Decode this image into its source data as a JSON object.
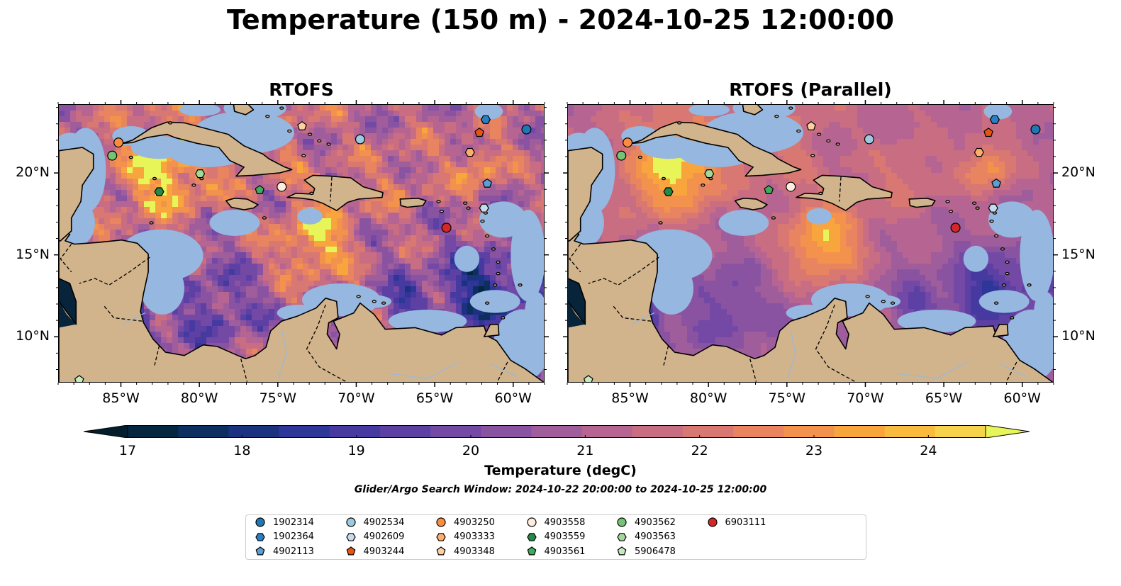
{
  "title": "Temperature (150 m) - 2024-10-25 12:00:00",
  "panels": [
    {
      "title": "RTOFS",
      "mode": "sharp"
    },
    {
      "title": "RTOFS (Parallel)",
      "mode": "smooth"
    }
  ],
  "axes": {
    "xlim_deg": [
      -89.0,
      -58.0
    ],
    "ylim_deg": [
      7.2,
      24.2
    ],
    "xticks": [
      {
        "value": -85,
        "label": "85°W"
      },
      {
        "value": -80,
        "label": "80°W"
      },
      {
        "value": -75,
        "label": "75°W"
      },
      {
        "value": -70,
        "label": "70°W"
      },
      {
        "value": -65,
        "label": "65°W"
      },
      {
        "value": -60,
        "label": "60°W"
      }
    ],
    "yticks": [
      {
        "value": 20,
        "label": "20°N"
      },
      {
        "value": 15,
        "label": "15°N"
      },
      {
        "value": 10,
        "label": "10°N"
      }
    ]
  },
  "colorbar": {
    "label": "Temperature (degC)",
    "ticks": [
      "17",
      "18",
      "19",
      "20",
      "21",
      "22",
      "23",
      "24"
    ],
    "min": 17,
    "max": 24.5,
    "step": 0.5,
    "colors": [
      "#05263f",
      "#0d2e60",
      "#1b3281",
      "#2e3697",
      "#463aa1",
      "#5d40a4",
      "#7448a5",
      "#8a53a2",
      "#a05d9c",
      "#b66592",
      "#c96d83",
      "#d97872",
      "#e8845f",
      "#f3924c",
      "#f9a53e",
      "#f9bb3e",
      "#f5d44b"
    ],
    "under_color": "#041d2e",
    "over_color": "#e8f558"
  },
  "colors": {
    "land": "#d2b48c",
    "shelf": "#95b7e0",
    "deep": "#07243a"
  },
  "search_window": "Glider/Argo Search Window: 2024-10-22 20:00:00 to 2024-10-25 12:00:00",
  "floats": [
    {
      "id": "1902314",
      "marker": "circle",
      "color": "#1f77b4",
      "lon": -59.2,
      "lat": 22.7
    },
    {
      "id": "1902364",
      "marker": "hexagon",
      "color": "#2a7fc4",
      "lon": -61.8,
      "lat": 23.3
    },
    {
      "id": "4902113",
      "marker": "pentagon",
      "color": "#5a9fd6",
      "lon": -61.7,
      "lat": 19.4
    },
    {
      "id": "4902534",
      "marker": "circle",
      "color": "#9ecae1",
      "lon": -69.8,
      "lat": 22.1
    },
    {
      "id": "4902609",
      "marker": "hexagon",
      "color": "#c6dbef",
      "lon": -61.9,
      "lat": 17.9
    },
    {
      "id": "4903244",
      "marker": "pentagon",
      "color": "#e6550d",
      "lon": -62.2,
      "lat": 22.5
    },
    {
      "id": "4903250",
      "marker": "circle",
      "color": "#fd8d3c",
      "lon": -85.2,
      "lat": 21.9
    },
    {
      "id": "4903333",
      "marker": "hexagon",
      "color": "#fdae6b",
      "lon": -62.8,
      "lat": 21.3
    },
    {
      "id": "4903348",
      "marker": "pentagon",
      "color": "#fdd0a2",
      "lon": -73.5,
      "lat": 22.9
    },
    {
      "id": "4903558",
      "marker": "circle",
      "color": "#feedde",
      "lon": -74.8,
      "lat": 19.2
    },
    {
      "id": "4903559",
      "marker": "hexagon",
      "color": "#238b45",
      "lon": -82.6,
      "lat": 18.9
    },
    {
      "id": "4903561",
      "marker": "pentagon",
      "color": "#41ab5d",
      "lon": -76.2,
      "lat": 19.0
    },
    {
      "id": "4903562",
      "marker": "circle",
      "color": "#74c476",
      "lon": -85.6,
      "lat": 21.1
    },
    {
      "id": "4903563",
      "marker": "hexagon",
      "color": "#a1d99b",
      "lon": -80.0,
      "lat": 20.0
    },
    {
      "id": "5906478",
      "marker": "pentagon",
      "color": "#c7e9c0",
      "lon": -87.7,
      "lat": 7.4
    },
    {
      "id": "6903111",
      "marker": "circle",
      "color": "#d62728",
      "lon": -64.3,
      "lat": 16.7
    }
  ]
}
